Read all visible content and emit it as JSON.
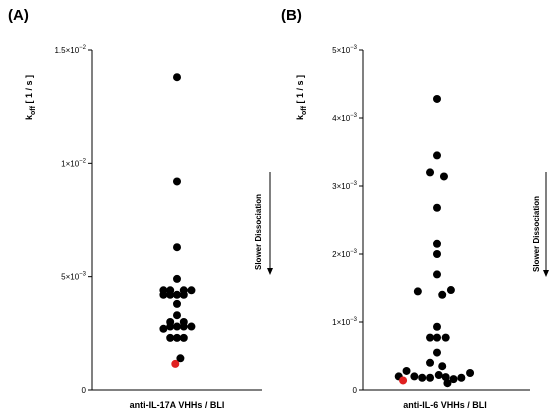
{
  "chart_data": [
    {
      "type": "scatter",
      "panel_label": "(A)",
      "ylabel_main": "k",
      "ylabel_sub": "off",
      "ylabel_unit": "[ 1 / s ]",
      "xlabel": "anti-IL-17A VHHs / BLI",
      "annotation": "Slower Dissociation",
      "ylim": [
        0,
        0.015
      ],
      "yticks": [
        {
          "value": 0,
          "base": "0",
          "exp": ""
        },
        {
          "value": 0.005,
          "base": "5×10",
          "exp": "−3"
        },
        {
          "value": 0.01,
          "base": "1×10",
          "exp": "−2"
        },
        {
          "value": 0.015,
          "base": "1.5×10",
          "exp": "−2"
        }
      ],
      "highlight_color": "#e02020",
      "point_color": "#000000",
      "points": [
        {
          "x": 0.0,
          "y": 0.0138
        },
        {
          "x": 0.0,
          "y": 0.0092
        },
        {
          "x": 0.0,
          "y": 0.0063
        },
        {
          "x": 0.0,
          "y": 0.0049
        },
        {
          "x": -1.6,
          "y": 0.0044
        },
        {
          "x": -0.8,
          "y": 0.0044
        },
        {
          "x": 0.8,
          "y": 0.0044
        },
        {
          "x": 1.7,
          "y": 0.0044
        },
        {
          "x": -1.6,
          "y": 0.0042
        },
        {
          "x": -0.8,
          "y": 0.0042
        },
        {
          "x": 0.0,
          "y": 0.0042
        },
        {
          "x": 0.8,
          "y": 0.0042
        },
        {
          "x": 0.0,
          "y": 0.0038
        },
        {
          "x": 0.0,
          "y": 0.0033
        },
        {
          "x": -0.8,
          "y": 0.003
        },
        {
          "x": 0.8,
          "y": 0.003
        },
        {
          "x": -1.6,
          "y": 0.0027
        },
        {
          "x": -0.8,
          "y": 0.0028
        },
        {
          "x": 0.0,
          "y": 0.0028
        },
        {
          "x": 0.8,
          "y": 0.0028
        },
        {
          "x": 1.7,
          "y": 0.0028
        },
        {
          "x": -0.8,
          "y": 0.0023
        },
        {
          "x": 0.0,
          "y": 0.0023
        },
        {
          "x": 0.8,
          "y": 0.0023
        },
        {
          "x": 0.4,
          "y": 0.0014
        },
        {
          "x": -0.2,
          "y": 0.00115,
          "highlight": true
        }
      ]
    },
    {
      "type": "scatter",
      "panel_label": "(B)",
      "ylabel_main": "k",
      "ylabel_sub": "off",
      "ylabel_unit": "[ 1 / s ]",
      "xlabel": "anti-IL-6 VHHs / BLI",
      "annotation": "Slower Dissociation",
      "ylim": [
        0,
        0.005
      ],
      "yticks": [
        {
          "value": 0,
          "base": "0",
          "exp": ""
        },
        {
          "value": 0.001,
          "base": "1×10",
          "exp": "−3"
        },
        {
          "value": 0.002,
          "base": "2×10",
          "exp": "−3"
        },
        {
          "value": 0.003,
          "base": "3×10",
          "exp": "−3"
        },
        {
          "value": 0.004,
          "base": "4×10",
          "exp": "−3"
        },
        {
          "value": 0.005,
          "base": "5×10",
          "exp": "−3"
        }
      ],
      "highlight_color": "#e02020",
      "point_color": "#000000",
      "points": [
        {
          "x": 0.0,
          "y": 0.00428
        },
        {
          "x": 0.0,
          "y": 0.00345
        },
        {
          "x": -0.8,
          "y": 0.0032
        },
        {
          "x": 0.8,
          "y": 0.00314
        },
        {
          "x": 0.0,
          "y": 0.00268
        },
        {
          "x": 0.0,
          "y": 0.00215
        },
        {
          "x": 0.0,
          "y": 0.002
        },
        {
          "x": 0.0,
          "y": 0.0017
        },
        {
          "x": -2.2,
          "y": 0.00145
        },
        {
          "x": 0.6,
          "y": 0.0014
        },
        {
          "x": 1.6,
          "y": 0.00147
        },
        {
          "x": 0.0,
          "y": 0.00093
        },
        {
          "x": -0.8,
          "y": 0.00077
        },
        {
          "x": 0.0,
          "y": 0.00077
        },
        {
          "x": 1.0,
          "y": 0.00077
        },
        {
          "x": 0.0,
          "y": 0.00055
        },
        {
          "x": -0.8,
          "y": 0.0004
        },
        {
          "x": 0.6,
          "y": 0.00035
        },
        {
          "x": -4.4,
          "y": 0.0002
        },
        {
          "x": -3.5,
          "y": 0.00028
        },
        {
          "x": -2.6,
          "y": 0.0002
        },
        {
          "x": -1.7,
          "y": 0.00018
        },
        {
          "x": -0.8,
          "y": 0.00018
        },
        {
          "x": 0.2,
          "y": 0.00022
        },
        {
          "x": 1.0,
          "y": 0.00019
        },
        {
          "x": 1.9,
          "y": 0.00016
        },
        {
          "x": 2.8,
          "y": 0.00018
        },
        {
          "x": 3.8,
          "y": 0.00025
        },
        {
          "x": 1.2,
          "y": 0.0001
        },
        {
          "x": -3.9,
          "y": 0.00014,
          "highlight": true
        }
      ]
    }
  ]
}
